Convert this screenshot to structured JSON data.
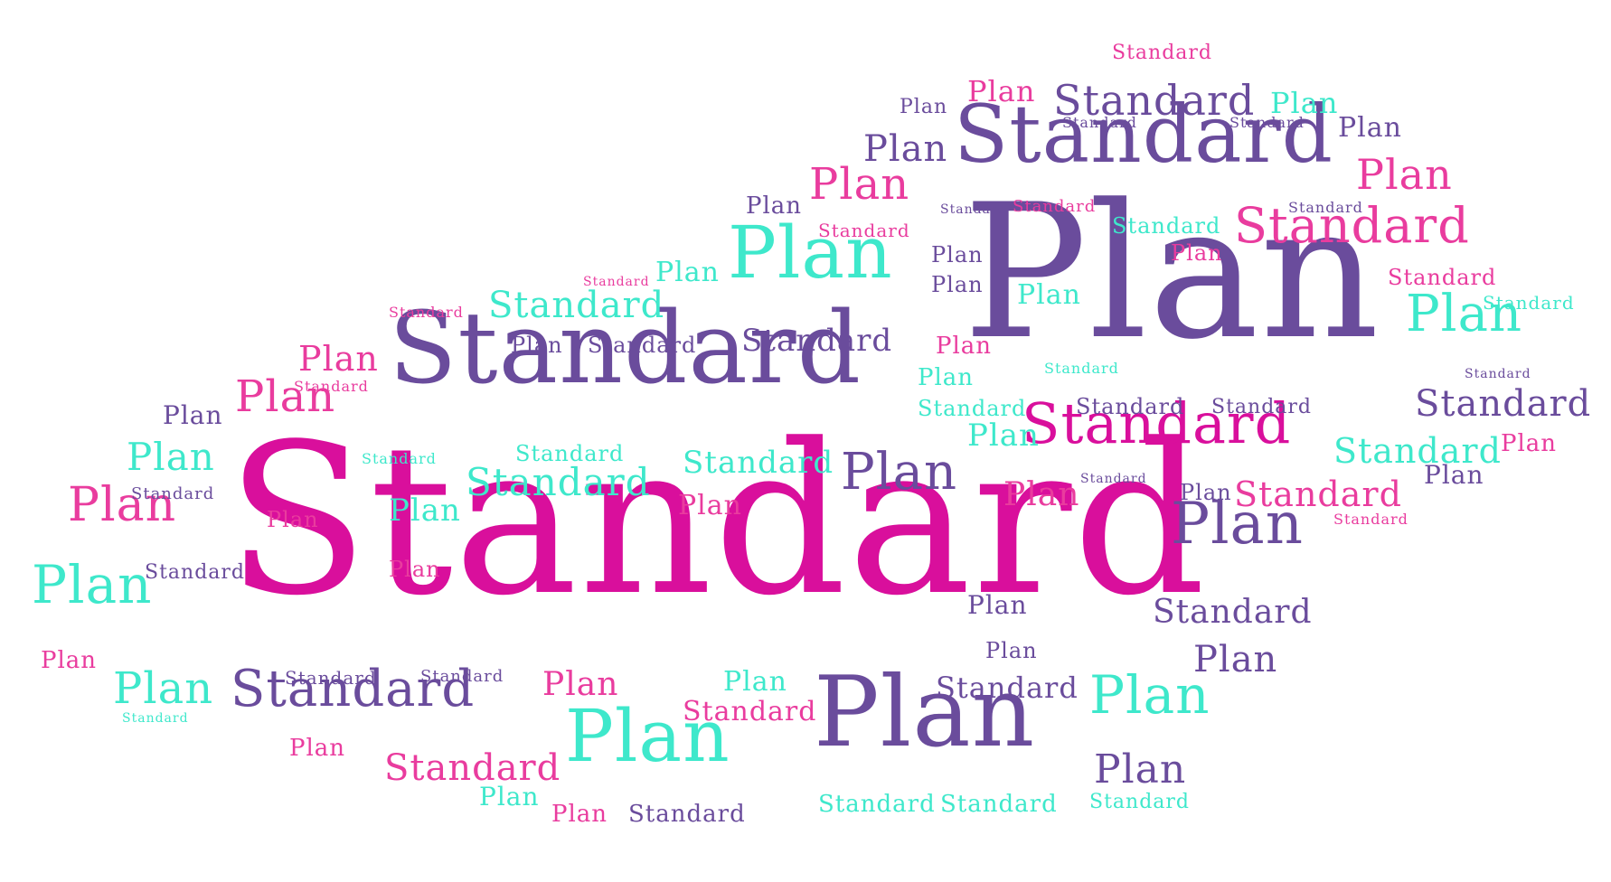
{
  "words": [
    "Standard",
    "Plan"
  ],
  "palette": {
    "purple": "#6a4c9c",
    "magenta": "#d90f9c",
    "teal": "#3ee8cb",
    "pink": "#e93c9e"
  }
}
